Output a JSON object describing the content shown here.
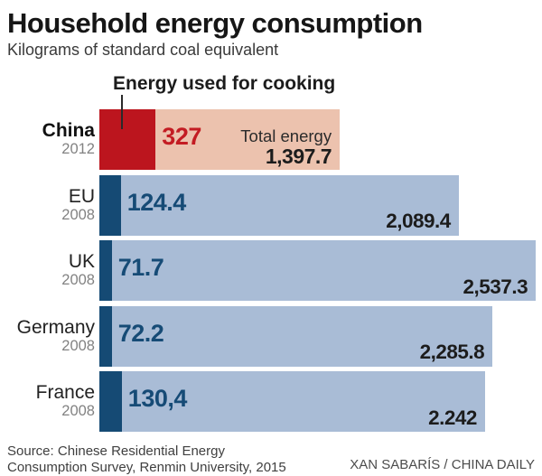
{
  "header": {
    "title": "Household energy consumption",
    "subtitle": "Kilograms of standard coal equivalent"
  },
  "annotation": {
    "label": "Energy used for cooking"
  },
  "chart_data": {
    "type": "bar",
    "orientation": "horizontal",
    "title": "Household energy consumption",
    "unit_label": "Kilograms of standard coal equivalent",
    "series": [
      {
        "name": "Energy used for cooking"
      },
      {
        "name": "Total energy"
      }
    ],
    "xlim": [
      0,
      2600
    ],
    "rows": [
      {
        "country": "China",
        "year": "2012",
        "highlight": true,
        "cooking": 327,
        "cooking_label": "327",
        "total": 1397.7,
        "total_label": "1,397.7",
        "total_caption": "Total energy",
        "colors": {
          "cooking_bar": "#bc151e",
          "total_bar": "#ecc2ae",
          "cooking_text": "#c31c23",
          "total_text": "#1c1c1c"
        }
      },
      {
        "country": "EU",
        "year": "2008",
        "highlight": false,
        "cooking": 124.4,
        "cooking_label": "124.4",
        "total": 2089.4,
        "total_label": "2,089.4",
        "total_caption": null,
        "colors": {
          "cooking_bar": "#154a74",
          "total_bar": "#a9bcd6",
          "cooking_text": "#164b76",
          "total_text": "#1c1c1c"
        }
      },
      {
        "country": "UK",
        "year": "2008",
        "highlight": false,
        "cooking": 71.7,
        "cooking_label": "71.7",
        "total": 2537.3,
        "total_label": "2,537.3",
        "total_caption": null,
        "colors": {
          "cooking_bar": "#154a74",
          "total_bar": "#a9bcd6",
          "cooking_text": "#164b76",
          "total_text": "#1c1c1c"
        }
      },
      {
        "country": "Germany",
        "year": "2008",
        "highlight": false,
        "cooking": 72.2,
        "cooking_label": "72.2",
        "total": 2285.8,
        "total_label": "2,285.8",
        "total_caption": null,
        "colors": {
          "cooking_bar": "#154a74",
          "total_bar": "#a9bcd6",
          "cooking_text": "#164b76",
          "total_text": "#1c1c1c"
        }
      },
      {
        "country": "France",
        "year": "2008",
        "highlight": false,
        "cooking": 130.4,
        "cooking_label": "130,4",
        "total": 2242,
        "total_label": "2.242",
        "total_caption": null,
        "colors": {
          "cooking_bar": "#154a74",
          "total_bar": "#a9bcd6",
          "cooking_text": "#164b76",
          "total_text": "#1c1c1c"
        }
      }
    ]
  },
  "footer": {
    "source_line1": "Source: Chinese Residential Energy",
    "source_line2": "Consumption Survey, Renmin University, 2015",
    "credit": "XAN SABARÍS / CHINA DAILY"
  }
}
